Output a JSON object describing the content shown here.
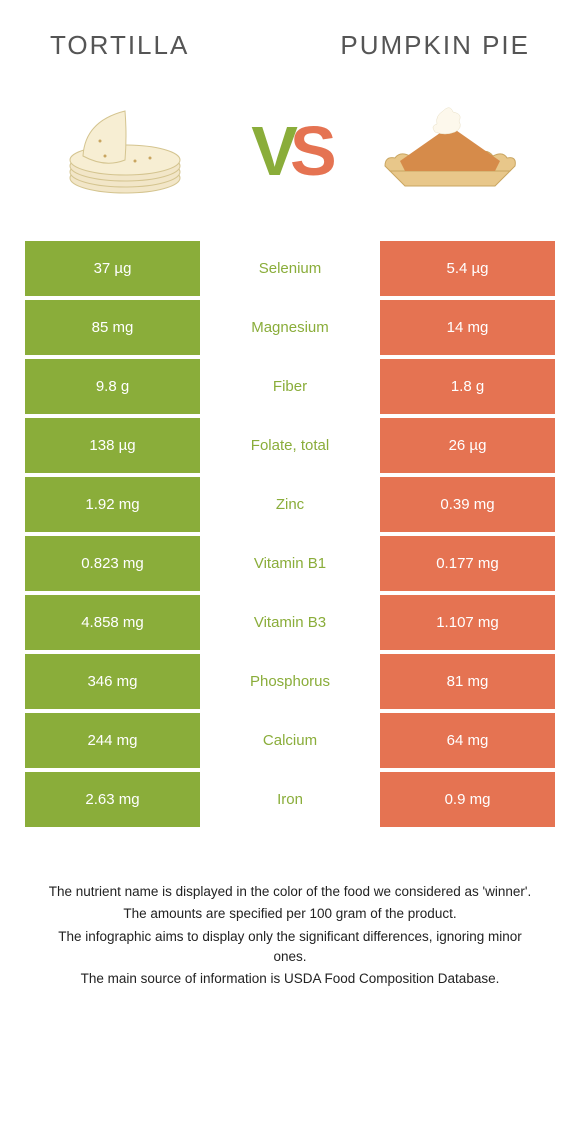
{
  "header": {
    "left_title": "TORTILLA",
    "right_title": "PUMPKIN PIE",
    "vs_v": "V",
    "vs_s": "S"
  },
  "colors": {
    "left": "#8aad3a",
    "right": "#e57352",
    "background": "#ffffff"
  },
  "rows": [
    {
      "left": "37 µg",
      "nutrient": "Selenium",
      "right": "5.4 µg",
      "winner": "left"
    },
    {
      "left": "85 mg",
      "nutrient": "Magnesium",
      "right": "14 mg",
      "winner": "left"
    },
    {
      "left": "9.8 g",
      "nutrient": "Fiber",
      "right": "1.8 g",
      "winner": "left"
    },
    {
      "left": "138 µg",
      "nutrient": "Folate, total",
      "right": "26 µg",
      "winner": "left"
    },
    {
      "left": "1.92 mg",
      "nutrient": "Zinc",
      "right": "0.39 mg",
      "winner": "left"
    },
    {
      "left": "0.823 mg",
      "nutrient": "Vitamin B1",
      "right": "0.177 mg",
      "winner": "left"
    },
    {
      "left": "4.858 mg",
      "nutrient": "Vitamin B3",
      "right": "1.107 mg",
      "winner": "left"
    },
    {
      "left": "346 mg",
      "nutrient": "Phosphorus",
      "right": "81 mg",
      "winner": "left"
    },
    {
      "left": "244 mg",
      "nutrient": "Calcium",
      "right": "64 mg",
      "winner": "left"
    },
    {
      "left": "2.63 mg",
      "nutrient": "Iron",
      "right": "0.9 mg",
      "winner": "left"
    }
  ],
  "footer": {
    "line1": "The nutrient name is displayed in the color of the food we considered as 'winner'.",
    "line2": "The amounts are specified per 100 gram of the product.",
    "line3": "The infographic aims to display only the significant differences, ignoring minor ones.",
    "line4": "The main source of information is USDA Food Composition Database."
  }
}
